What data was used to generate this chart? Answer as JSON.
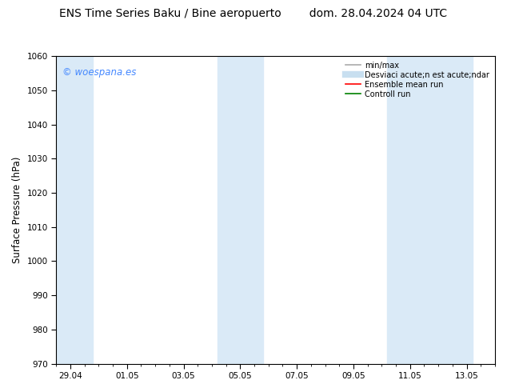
{
  "title_left": "ENS Time Series Baku / Bine aeropuerto",
  "title_right": "dom. 28.04.2024 04 UTC",
  "ylabel": "Surface Pressure (hPa)",
  "ylim": [
    970,
    1060
  ],
  "yticks": [
    970,
    980,
    990,
    1000,
    1010,
    1020,
    1030,
    1040,
    1050,
    1060
  ],
  "xtick_labels": [
    "29.04",
    "01.05",
    "03.05",
    "05.05",
    "07.05",
    "09.05",
    "11.05",
    "13.05"
  ],
  "xtick_positions": [
    0,
    2,
    4,
    6,
    8,
    10,
    12,
    14
  ],
  "xlim": [
    -0.5,
    15.0
  ],
  "background_color": "#ffffff",
  "plot_bg_color": "#ffffff",
  "shaded_bands": [
    {
      "x_start": -0.5,
      "x_end": 0.8,
      "color": "#daeaf7"
    },
    {
      "x_start": 5.2,
      "x_end": 6.8,
      "color": "#daeaf7"
    },
    {
      "x_start": 11.2,
      "x_end": 14.2,
      "color": "#daeaf7"
    }
  ],
  "legend_entries": [
    {
      "label": "min/max",
      "color": "#aaaaaa",
      "lw": 1.2,
      "style": "-"
    },
    {
      "label": "Desviaci acute;n est acute;ndar",
      "color": "#c8dff0",
      "lw": 6,
      "style": "-"
    },
    {
      "label": "Ensemble mean run",
      "color": "#ff0000",
      "lw": 1.2,
      "style": "-"
    },
    {
      "label": "Controll run",
      "color": "#008000",
      "lw": 1.2,
      "style": "-"
    }
  ],
  "watermark_text": "© woespana.es",
  "watermark_color": "#4488ff",
  "title_fontsize": 10,
  "tick_fontsize": 7.5,
  "ylabel_fontsize": 8.5,
  "legend_fontsize": 7
}
